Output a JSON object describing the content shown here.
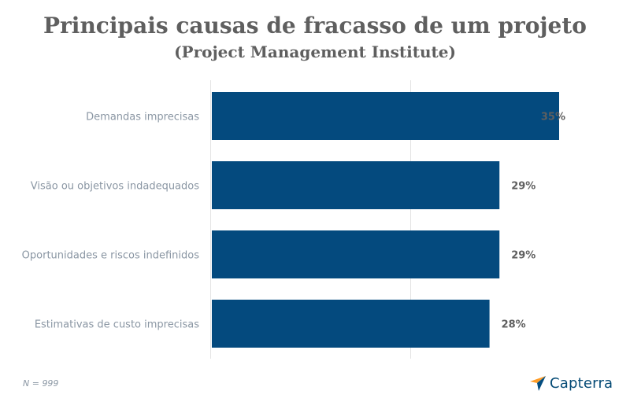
{
  "header": {
    "title": "Principais causas de fracasso de um projeto",
    "subtitle": "(Project Management Institute)"
  },
  "footnote": "N = 999",
  "brand": {
    "name": "Capterra",
    "icon": "capterra-arrow-icon"
  },
  "colors": {
    "bar": "#044a7e",
    "label": "#8a96a3",
    "value": "#5f5f5f",
    "grid": "#e3e3e3",
    "logo_orange": "#ff9d28",
    "logo_blue": "#68c5ed",
    "logo_navy": "#044d80"
  },
  "chart_data": {
    "type": "bar",
    "orientation": "horizontal",
    "categories": [
      "Demandas imprecisas",
      "Visão ou objetivos indadequados",
      "Oportunidades e riscos indefinidos",
      "Estimativas de custo imprecisas"
    ],
    "values": [
      35,
      29,
      29,
      28
    ],
    "value_labels": [
      "35%",
      "29%",
      "29%",
      "28%"
    ],
    "xlim": [
      0,
      35
    ],
    "grid": true
  }
}
